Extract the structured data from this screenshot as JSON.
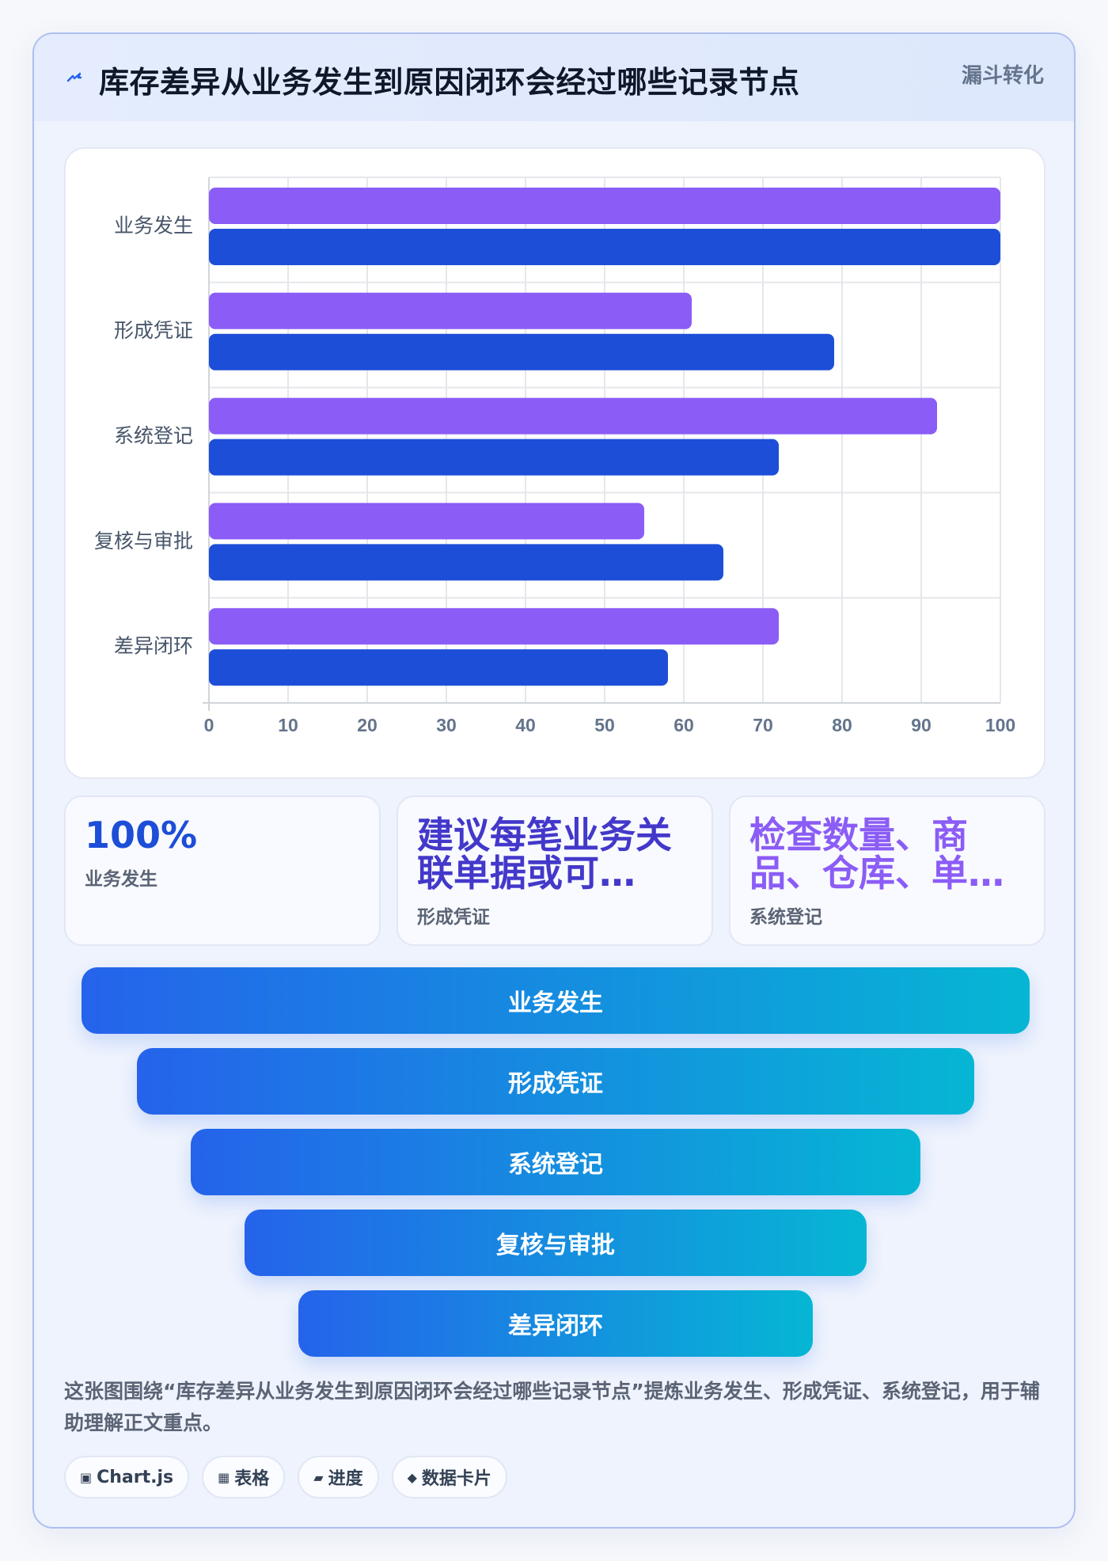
{
  "header": {
    "icon": "lightning-icon",
    "title": "库存差异从业务发生到原因闭环会经过哪些记录节点",
    "badge": "漏斗转化"
  },
  "chart_data": {
    "type": "bar",
    "orientation": "horizontal",
    "categories": [
      "业务发生",
      "形成凭证",
      "系统登记",
      "复核与审批",
      "差异闭环"
    ],
    "series": [
      {
        "color": "#8b5cf6",
        "values": [
          100,
          61,
          92,
          55,
          72
        ]
      },
      {
        "color": "#1d4ed8",
        "values": [
          100,
          79,
          72,
          65,
          58
        ]
      }
    ],
    "xlim": [
      0,
      100
    ],
    "xticks": [
      0,
      10,
      20,
      30,
      40,
      50,
      60,
      70,
      80,
      90,
      100
    ],
    "grid": true,
    "title": "",
    "xlabel": "",
    "ylabel": ""
  },
  "kpis": [
    {
      "value": "100%",
      "label": "业务发生",
      "color": "#1d4ed8"
    },
    {
      "value": "建议每笔业务关联单据或可…",
      "label": "形成凭证",
      "color": "#4338ca"
    },
    {
      "value": "检查数量、商品、仓库、单…",
      "label": "系统登记",
      "color": "#8b5cf6"
    }
  ],
  "funnel": [
    {
      "label": "业务发生"
    },
    {
      "label": "形成凭证"
    },
    {
      "label": "系统登记"
    },
    {
      "label": "复核与审批"
    },
    {
      "label": "差异闭环"
    }
  ],
  "description": "这张图围绕“库存差异从业务发生到原因闭环会经过哪些记录节点”提炼业务发生、形成凭证、系统登记，用于辅助理解正文重点。",
  "tags": [
    {
      "icon": "▣",
      "label": "Chart.js"
    },
    {
      "icon": "▦",
      "label": "表格"
    },
    {
      "icon": "▰",
      "label": "进度"
    },
    {
      "icon": "◆",
      "label": "数据卡片"
    }
  ]
}
